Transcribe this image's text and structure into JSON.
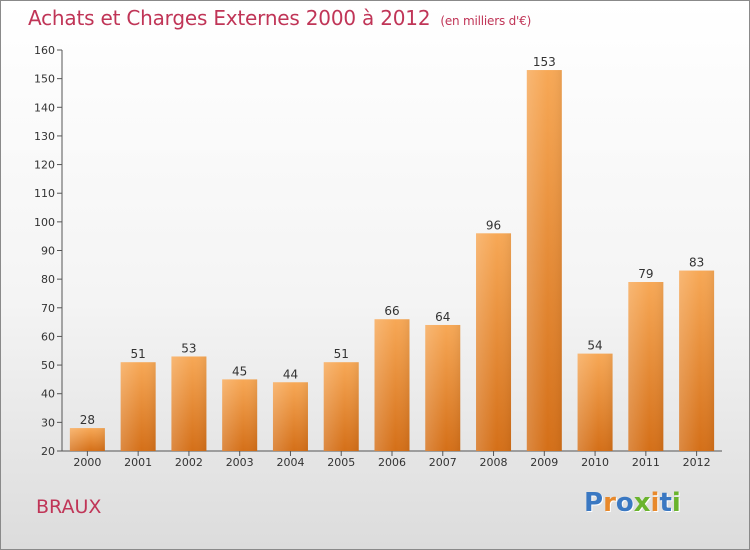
{
  "header": {
    "title": "Achats et Charges Externes 2000 à 2012",
    "unit": "(en milliers d'€)"
  },
  "footer": {
    "commune": "BRAUX",
    "logo_text": "Proxiti"
  },
  "colors": {
    "title": "#c03557",
    "bar_top": "#f7a856",
    "bar_bottom": "#d46f18",
    "logo": [
      "#3a78c2",
      "#e8892b",
      "#3a78c2",
      "#6ab42d",
      "#e8892b",
      "#3a78c2",
      "#6ab42d"
    ]
  },
  "chart_data": {
    "type": "bar",
    "title": "Achats et Charges Externes 2000 à 2012",
    "xlabel": "",
    "ylabel": "",
    "categories": [
      "2000",
      "2001",
      "2002",
      "2003",
      "2004",
      "2005",
      "2006",
      "2007",
      "2008",
      "2009",
      "2010",
      "2011",
      "2012"
    ],
    "values": [
      28,
      51,
      53,
      45,
      44,
      51,
      66,
      64,
      96,
      153,
      54,
      79,
      83
    ],
    "ylim": [
      20,
      160
    ],
    "yticks": [
      20,
      30,
      40,
      50,
      60,
      70,
      80,
      90,
      100,
      110,
      120,
      130,
      140,
      150,
      160
    ],
    "grid": false,
    "legend": "none",
    "data_labels": true
  }
}
